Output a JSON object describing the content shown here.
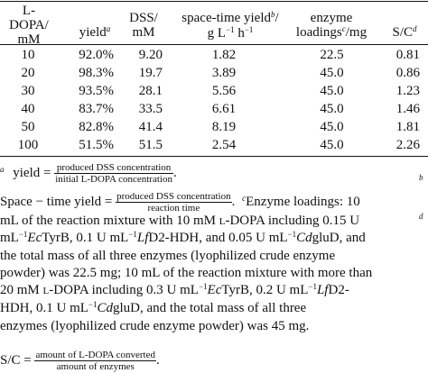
{
  "table": {
    "headers": {
      "dopa_line1": "L-",
      "dopa_line2": "DOPA/",
      "dopa_line3": "mM",
      "yield": "yield",
      "yield_mark": "a",
      "dss_line1": "DSS/",
      "dss_line2": "mM",
      "sty_line1": "space-time yield",
      "sty_mark": "b",
      "sty_slash": "/",
      "sty_line2": "g L",
      "sty_exp1": "−1",
      "sty_h": " h",
      "sty_exp2": "−1",
      "enz_line1": "enzyme",
      "enz_line2": "loadings",
      "enz_mark": "c",
      "enz_unit": "/mg",
      "sc": "S/C",
      "sc_mark": "d"
    },
    "rows": [
      {
        "dopa": "10",
        "yield": "92.0%",
        "dss": "9.20",
        "sty": "1.82",
        "enzyme": "22.5",
        "sc": "0.81"
      },
      {
        "dopa": "20",
        "yield": "98.3%",
        "dss": "19.7",
        "sty": "3.89",
        "enzyme": "45.0",
        "sc": "0.86"
      },
      {
        "dopa": "30",
        "yield": "93.5%",
        "dss": "28.1",
        "sty": "5.56",
        "enzyme": "45.0",
        "sc": "1.23"
      },
      {
        "dopa": "40",
        "yield": "83.7%",
        "dss": "33.5",
        "sty": "6.61",
        "enzyme": "45.0",
        "sc": "1.46"
      },
      {
        "dopa": "50",
        "yield": "82.8%",
        "dss": "41.4",
        "sty": "8.19",
        "enzyme": "45.0",
        "sc": "1.81"
      },
      {
        "dopa": "100",
        "yield": "51.5%",
        "dss": "51.5",
        "sty": "2.54",
        "enzyme": "45.0",
        "sc": "2.26"
      }
    ]
  },
  "footnotes": {
    "a_mark": "a",
    "a_label": "yield =",
    "a_num": "produced DSS concentration",
    "a_den": "initial L-DOPA concentration",
    "a_end": ".",
    "b_mark_right": "b",
    "b_label": "Space − time yield =",
    "b_num": "produced DSS concentration",
    "b_den": "reaction time",
    "b_end": ".",
    "c_mark": "c",
    "c_text1": "Enzyme loadings: 10",
    "c_line2": "mL of the reaction mixture with 10 mM ",
    "c_ldopa1": "l",
    "c_line2b": "-DOPA including 0.15 U",
    "c_line3a": "mL",
    "c_line3b": "−1",
    "c_line3c": "Ec",
    "c_line3d": "TyrB, 0.1 U mL",
    "c_line3e": "−1",
    "c_line3f": "Lf",
    "c_line3g": "D2-HDH, and 0.05 U mL",
    "c_line3h": "−1",
    "c_line3i": "Cd",
    "c_line3j": "gluD, and",
    "c_line4": "the total mass of all three enzymes (lyophilized crude enzyme",
    "c_line5": "powder) was 22.5 mg; 10 mL of the reaction mixture with more than",
    "c_line6a": "20 mM ",
    "c_line6b": "l",
    "c_line6c": "-DOPA including 0.3 U mL",
    "c_line6d": "−1",
    "c_line6e": "Ec",
    "c_line6f": "TyrB, 0.2 U mL",
    "c_line6g": "−1",
    "c_line6h": "Lf",
    "c_line6i": "D2-",
    "c_line7a": "HDH, 0.1 U mL",
    "c_line7b": "−1",
    "c_line7c": "Cd",
    "c_line7d": "gluD, and the total mass of all three",
    "c_line8": "enzymes (lyophilized crude enzyme powder) was 45 mg.",
    "d_mark": "d",
    "d_label": "S/C =",
    "d_num": "amount of L-DOPA converted",
    "d_den": "amount of enzymes",
    "d_end": "."
  }
}
